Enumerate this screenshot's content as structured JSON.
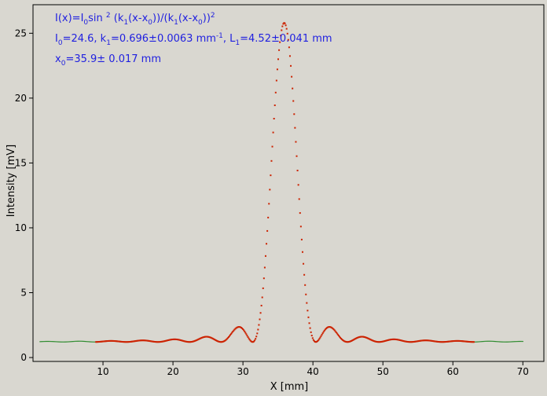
{
  "chart_data": {
    "type": "scatter",
    "title": "",
    "xlabel": "X [mm]",
    "ylabel": "Intensity [mV]",
    "xlim": [
      0,
      73
    ],
    "ylim": [
      -0.3,
      27.2
    ],
    "x_ticks": [
      10,
      20,
      30,
      40,
      50,
      60,
      70
    ],
    "y_ticks": [
      0,
      5,
      10,
      15,
      20,
      25
    ],
    "grid": false,
    "background": "#d9d7d0",
    "annotation": {
      "line1": {
        "a": "I(x)=I",
        "b": "0",
        "c": "sin ",
        "d": "2",
        "e": " (k",
        "f": "1",
        "g": "(x-x",
        "h": "0",
        "i": "))/(k",
        "j": "1",
        "k": "(x-x",
        "l": "0",
        "m": "))",
        "n": "2"
      },
      "line2": {
        "a": "I",
        "b": "0",
        "c": "=24.6,  k",
        "d": "1",
        "e": "=0.696±0.0063 mm",
        "f": "-1",
        "g": ",   L",
        "h": "1",
        "i": "=4.52±0.041 mm"
      },
      "line3": {
        "a": "x",
        "b": "0",
        "c": "=35.9±   0.017 mm"
      },
      "color": "#1f1fe0"
    },
    "fit": {
      "I0": 24.6,
      "k1": 0.696,
      "x0": 35.9,
      "baseline": 1.2,
      "peak": 25.8,
      "fitted_range": [
        9,
        63
      ]
    },
    "series": [
      {
        "role": "all-points",
        "x_range": [
          1,
          70
        ],
        "color": "#2e8b2e"
      },
      {
        "role": "fitted-points",
        "x_range": [
          9,
          63
        ],
        "color": "#cc2200"
      }
    ]
  }
}
